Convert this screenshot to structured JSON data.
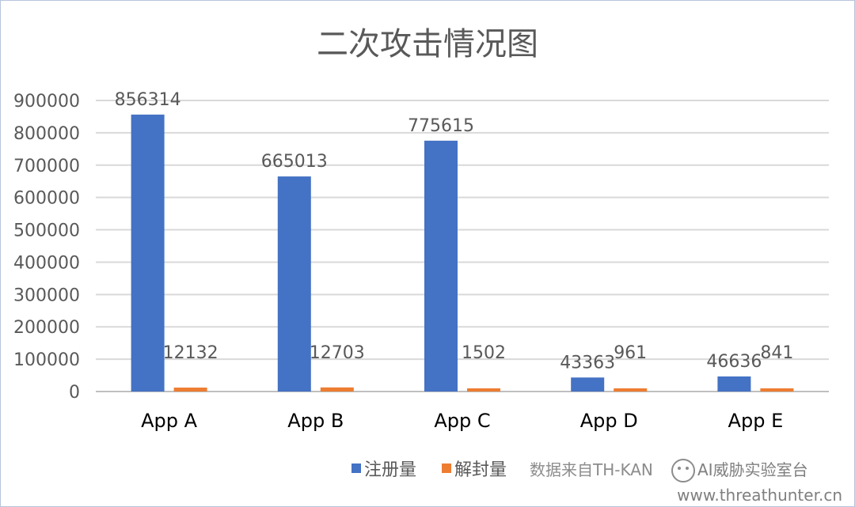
{
  "chart_data": {
    "type": "bar",
    "title": "二次攻击情况图",
    "categories": [
      "App A",
      "App B",
      "App C",
      "App D",
      "App E"
    ],
    "series": [
      {
        "name": "注册量",
        "values": [
          856314,
          665013,
          775615,
          43363,
          46636
        ],
        "color": "#4472c4"
      },
      {
        "name": "解封量",
        "values": [
          12132,
          12703,
          1502,
          961,
          841
        ],
        "color": "#ed7d31"
      }
    ],
    "y_ticks": [
      "0",
      "100000",
      "200000",
      "300000",
      "400000",
      "500000",
      "600000",
      "700000",
      "800000",
      "900000"
    ],
    "ylim": [
      0,
      900000
    ],
    "grid": true,
    "legend_position": "bottom"
  },
  "footer": {
    "source_note": "数据来自TH-KAN",
    "watermark": "AI威胁实验室台",
    "url": "www.threathunter.cn"
  },
  "colors": {
    "gridline": "#d9d9d9",
    "axis": "#bfbfbf",
    "text": "#595959"
  }
}
